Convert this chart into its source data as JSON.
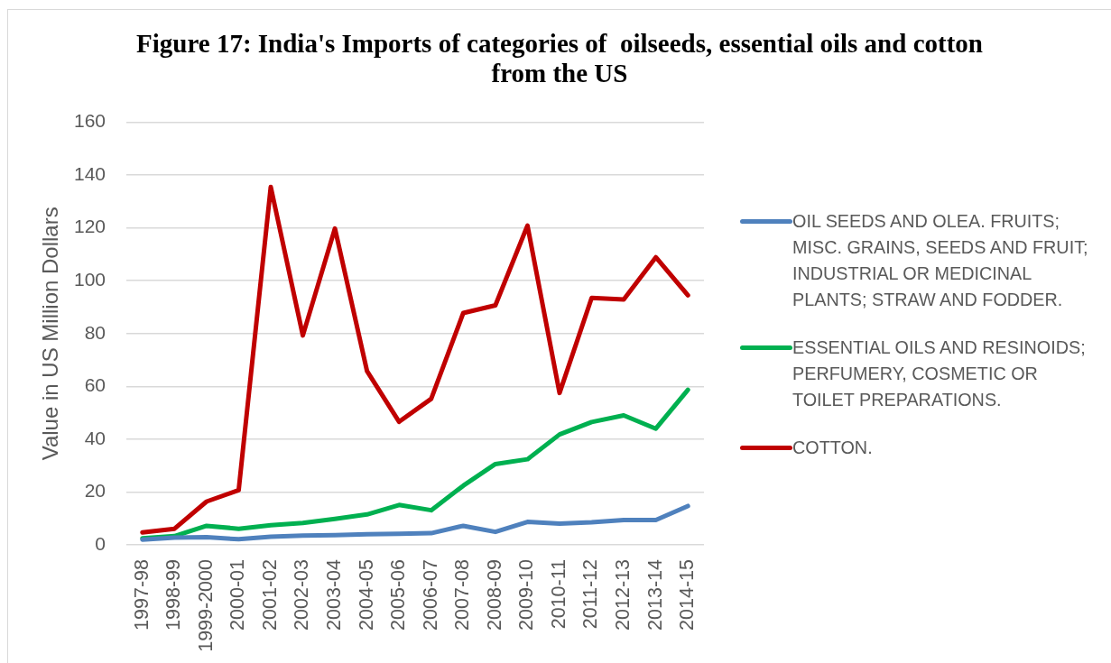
{
  "chart_data": {
    "type": "line",
    "title": "Figure 17: India's Imports of categories of  oilseeds, essential oils and cotton from the US",
    "ylabel": "Value in US Million Dollars",
    "categories": [
      "1997-98",
      "1998-99",
      "1999-2000",
      "2000-01",
      "2001-02",
      "2002-03",
      "2003-04",
      "2004-05",
      "2005-06",
      "2006-07",
      "2007-08",
      "2008-09",
      "2009-10",
      "2010-11",
      "2011-12",
      "2012-13",
      "2013-14",
      "2014-15"
    ],
    "series": [
      {
        "name": "OIL SEEDS AND OLEA. FRUITS; MISC. GRAINS, SEEDS AND FRUIT; INDUSTRIAL OR MEDICINAL PLANTS; STRAW AND FODDER.",
        "color": "#4f81bd",
        "values": [
          2.0,
          2.7,
          2.9,
          2.1,
          3.1,
          3.5,
          3.7,
          4.0,
          4.2,
          4.4,
          7.2,
          4.9,
          8.7,
          8.0,
          8.5,
          9.4,
          9.4,
          14.7
        ]
      },
      {
        "name": "ESSENTIAL OILS AND RESINOIDS; PERFUMERY, COSMETIC OR TOILET PREPARATIONS.",
        "color": "#00b050",
        "values": [
          2.5,
          3.3,
          7.2,
          6.1,
          7.4,
          8.3,
          9.8,
          11.5,
          15.1,
          13.1,
          22.4,
          30.6,
          32.4,
          41.8,
          46.5,
          49.0,
          44.0,
          58.7
        ]
      },
      {
        "name": "COTTON.",
        "color": "#c00000",
        "values": [
          4.7,
          6.1,
          16.4,
          20.7,
          135.5,
          79.3,
          119.8,
          65.8,
          46.6,
          55.3,
          87.8,
          90.7,
          120.9,
          57.5,
          93.5,
          92.9,
          108.9,
          94.5
        ]
      }
    ],
    "ylim": [
      0,
      160
    ],
    "yticks": [
      0,
      20,
      40,
      60,
      80,
      100,
      120,
      140,
      160
    ],
    "grid": "y",
    "legend": "right",
    "marker": "none"
  }
}
